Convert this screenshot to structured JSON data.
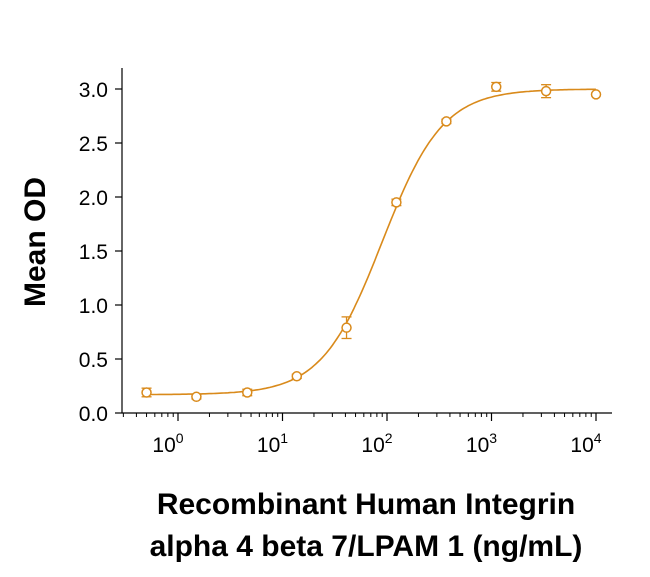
{
  "chart_data": {
    "type": "scatter",
    "title": "",
    "xlabel_lines": [
      "Recombinant Human Integrin",
      "alpha 4 beta 7/LPAM 1 (ng/mL)"
    ],
    "ylabel": "Mean OD",
    "x_scale": "log",
    "xlim": [
      0.3,
      10000
    ],
    "ylim": [
      0,
      3.0
    ],
    "x_ticks": [
      {
        "base": "10",
        "exp": "0"
      },
      {
        "base": "10",
        "exp": "1"
      },
      {
        "base": "10",
        "exp": "2"
      },
      {
        "base": "10",
        "exp": "3"
      },
      {
        "base": "10",
        "exp": "4"
      }
    ],
    "y_ticks": [
      "0.0",
      "0.5",
      "1.0",
      "1.5",
      "2.0",
      "2.5",
      "3.0"
    ],
    "grid": false,
    "legend": "none",
    "color": "#d98a1b",
    "series": [
      {
        "points": [
          {
            "x": 0.5,
            "y": 0.19,
            "err": 0.04
          },
          {
            "x": 1.5,
            "y": 0.15,
            "err": 0.02
          },
          {
            "x": 4.6,
            "y": 0.19,
            "err": 0.03
          },
          {
            "x": 13.7,
            "y": 0.34,
            "err": 0.02
          },
          {
            "x": 41,
            "y": 0.79,
            "err": 0.1
          },
          {
            "x": 123,
            "y": 1.95,
            "err": 0.03
          },
          {
            "x": 370,
            "y": 2.7,
            "err": 0.02
          },
          {
            "x": 1110,
            "y": 3.02,
            "err": 0.04
          },
          {
            "x": 3330,
            "y": 2.98,
            "err": 0.06
          },
          {
            "x": 10000,
            "y": 2.95,
            "err": 0.0
          }
        ],
        "fit": {
          "model": "4PL",
          "bottom": 0.17,
          "top": 3.0,
          "ec50": 90,
          "hill": 1.5
        }
      }
    ]
  }
}
